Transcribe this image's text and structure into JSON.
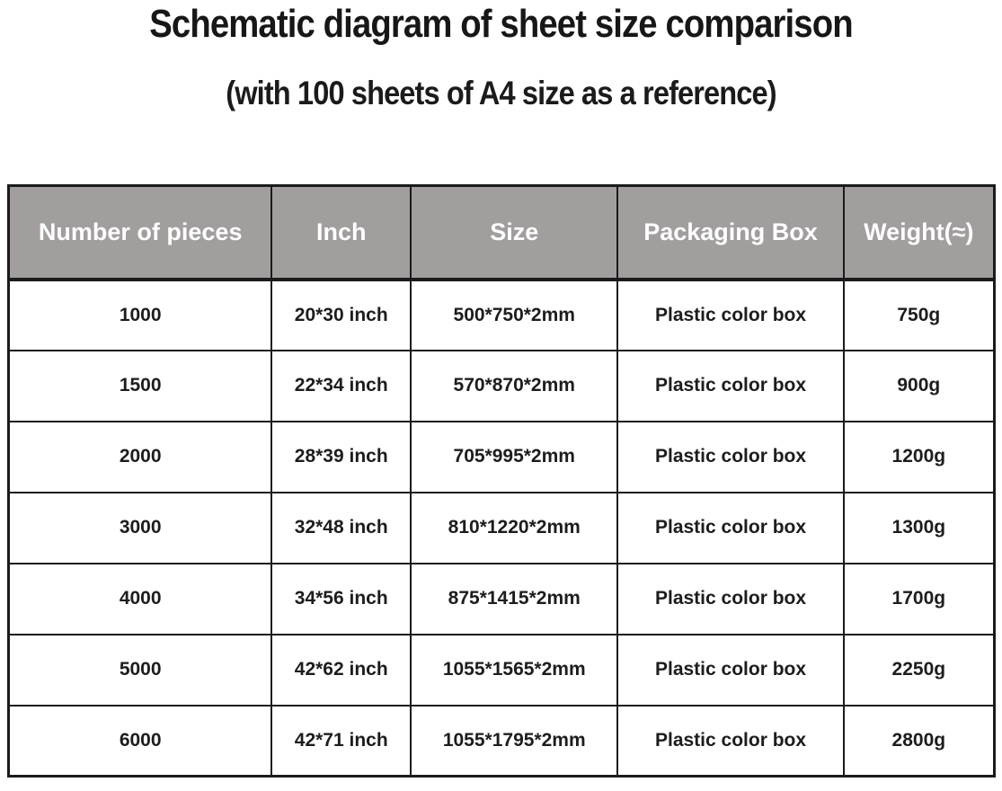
{
  "title": "Schematic diagram of sheet size comparison",
  "subtitle": "(with 100 sheets of A4 size as a reference)",
  "colors": {
    "header_bg": "#a29e9e",
    "header_text": "#ffffff",
    "body_text": "#1d1d1d",
    "border": "#1b1b1b",
    "page_bg": "#ffffff"
  },
  "chart_data": {
    "type": "table",
    "title": "Schematic diagram of sheet size comparison",
    "subtitle": "(with 100 sheets of A4 size as a reference)",
    "columns": [
      "Number of pieces",
      "Inch",
      "Size",
      "Packaging Box",
      "Weight(≈)"
    ],
    "rows": [
      [
        "1000",
        "20*30 inch",
        "500*750*2mm",
        "Plastic color box",
        "750g"
      ],
      [
        "1500",
        "22*34 inch",
        "570*870*2mm",
        "Plastic color box",
        "900g"
      ],
      [
        "2000",
        "28*39 inch",
        "705*995*2mm",
        "Plastic color box",
        "1200g"
      ],
      [
        "3000",
        "32*48 inch",
        "810*1220*2mm",
        "Plastic color box",
        "1300g"
      ],
      [
        "4000",
        "34*56 inch",
        "875*1415*2mm",
        "Plastic color box",
        "1700g"
      ],
      [
        "5000",
        "42*62 inch",
        "1055*1565*2mm",
        "Plastic color box",
        "2250g"
      ],
      [
        "6000",
        "42*71 inch",
        "1055*1795*2mm",
        "Plastic color box",
        "2800g"
      ]
    ],
    "layout": {
      "column_width_percents": [
        26.7,
        14.1,
        21.0,
        22.9,
        15.3
      ],
      "grid": true,
      "header_style": "gray background, white bold text"
    }
  }
}
